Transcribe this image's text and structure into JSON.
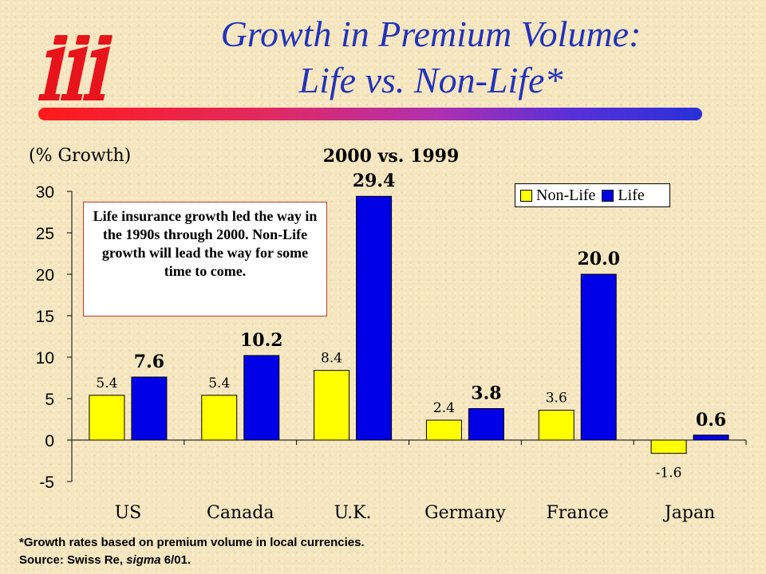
{
  "header": {
    "title_line1": "Growth in Premium Volume:",
    "title_line2": "Life vs. Non-Life*"
  },
  "colors": {
    "non_life": "#ffff00",
    "life": "#0000e6",
    "title": "#2233bb"
  },
  "note_box": {
    "text": "Life insurance growth led the way in the 1990s through 2000.  Non-Life growth will lead the way for some time to come."
  },
  "footer": {
    "footnote": "*Growth rates based on premium volume in local currencies.",
    "source_prefix": "Source:  Swiss Re, ",
    "source_publication": "sigma",
    "source_suffix": " 6/01."
  },
  "chart_data": {
    "type": "bar",
    "title": "2000 vs. 1999",
    "ylabel": "(% Growth)",
    "xlabel": "",
    "ylim": [
      -5,
      30
    ],
    "yticks": [
      30,
      25,
      20,
      15,
      10,
      5,
      0,
      -5
    ],
    "grid": false,
    "legend_position": "top-right",
    "categories": [
      "US",
      "Canada",
      "U.K.",
      "Germany",
      "France",
      "Japan"
    ],
    "series": [
      {
        "name": "Non-Life",
        "values": [
          5.4,
          5.4,
          8.4,
          2.4,
          3.6,
          -1.6
        ],
        "labels": [
          "5.4",
          "5.4",
          "8.4",
          "2.4",
          "3.6",
          "-1.6"
        ]
      },
      {
        "name": "Life",
        "values": [
          7.6,
          10.2,
          29.4,
          3.8,
          20.0,
          0.6
        ],
        "labels": [
          "7.6",
          "10.2",
          "29.4",
          "3.8",
          "20.0",
          "0.6"
        ]
      }
    ]
  }
}
